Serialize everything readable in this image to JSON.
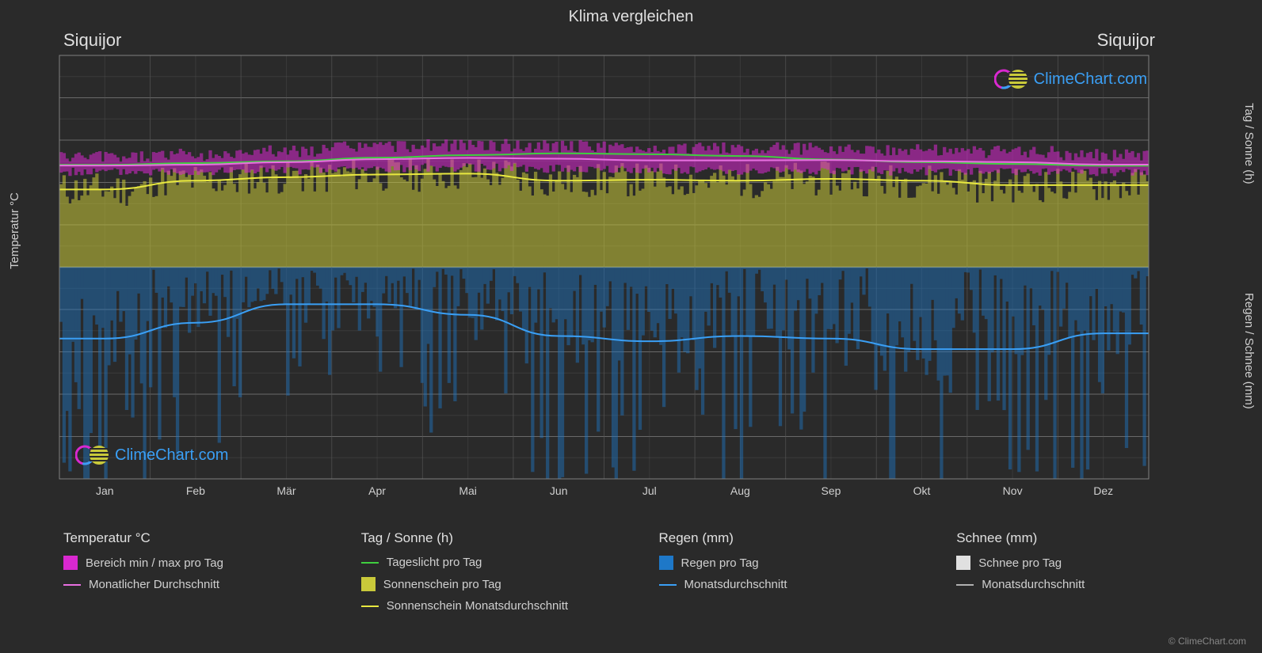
{
  "title": "Klima vergleichen",
  "location_left": "Siquijor",
  "location_right": "Siquijor",
  "watermark_text": "ClimeChart.com",
  "credit": "© ClimeChart.com",
  "axis_left": {
    "label": "Temperatur °C",
    "min": -50,
    "max": 50,
    "ticks": [
      -50,
      -40,
      -30,
      -20,
      -10,
      0,
      10,
      20,
      30,
      40,
      50
    ],
    "fontsize": 14,
    "color": "#d0d0d0"
  },
  "axis_right_top": {
    "label": "Tag / Sonne (h)",
    "min": 0,
    "max": 24,
    "ticks": [
      0,
      6,
      12,
      18,
      24
    ],
    "fontsize": 14,
    "color": "#d0d0d0"
  },
  "axis_right_bottom": {
    "label": "Regen / Schnee (mm)",
    "min": 0,
    "max": 40,
    "ticks": [
      0,
      10,
      20,
      30,
      40
    ],
    "fontsize": 14,
    "color": "#d0d0d0"
  },
  "months": [
    "Jan",
    "Feb",
    "Mär",
    "Apr",
    "Mai",
    "Jun",
    "Jul",
    "Aug",
    "Sep",
    "Okt",
    "Nov",
    "Dez"
  ],
  "chart": {
    "background_color": "#2a2a2a",
    "grid_color": "#555555",
    "grid_major_color": "#707070",
    "zero_line_color": "#909090",
    "temp_range_color": "#d928d0",
    "temp_range_opacity": 0.55,
    "temp_avg_line_color": "#e86fe0",
    "temp_avg_line_width": 2,
    "daylight_line_color": "#3fcf3f",
    "daylight_line_width": 2,
    "sunshine_bar_color": "#c9c93a",
    "sunshine_bar_opacity": 0.55,
    "sunshine_avg_line_color": "#e8e840",
    "sunshine_avg_line_width": 2,
    "rain_bar_color": "#1e78c8",
    "rain_bar_opacity": 0.45,
    "rain_avg_line_color": "#3a9ff5",
    "rain_avg_line_width": 2,
    "snow_bar_color": "#e0e0e0",
    "snow_avg_line_color": "#b0b0b0"
  },
  "series": {
    "temp_min_monthly": [
      22.5,
      22.6,
      22.8,
      23.2,
      23.5,
      23.2,
      22.9,
      22.8,
      22.7,
      22.6,
      22.6,
      22.5
    ],
    "temp_max_monthly": [
      26.0,
      26.5,
      27.5,
      28.5,
      28.8,
      28.5,
      28.0,
      28.0,
      28.0,
      27.8,
      27.2,
      26.5
    ],
    "temp_avg_monthly": [
      24.0,
      24.2,
      24.8,
      25.5,
      25.8,
      25.6,
      25.2,
      25.2,
      25.3,
      25.0,
      24.8,
      24.2
    ],
    "daylight_monthly": [
      11.6,
      11.8,
      12.0,
      12.4,
      12.7,
      12.9,
      12.8,
      12.6,
      12.2,
      11.9,
      11.7,
      11.5
    ],
    "sunshine_avg_monthly": [
      8.8,
      9.8,
      10.2,
      10.5,
      10.6,
      9.8,
      9.9,
      9.8,
      10.0,
      9.8,
      9.3,
      9.3
    ],
    "rain_avg_monthly": [
      13.5,
      10.5,
      7.0,
      7.0,
      9.0,
      13.0,
      14.0,
      13.0,
      13.5,
      15.5,
      15.5,
      12.5
    ]
  },
  "legend": {
    "col1": {
      "title": "Temperatur °C",
      "items": [
        {
          "type": "box",
          "color": "#d928d0",
          "label": "Bereich min / max pro Tag"
        },
        {
          "type": "line",
          "color": "#e86fe0",
          "label": "Monatlicher Durchschnitt"
        }
      ]
    },
    "col2": {
      "title": "Tag / Sonne (h)",
      "items": [
        {
          "type": "line",
          "color": "#3fcf3f",
          "label": "Tageslicht pro Tag"
        },
        {
          "type": "box",
          "color": "#c9c93a",
          "label": "Sonnenschein pro Tag"
        },
        {
          "type": "line",
          "color": "#e8e840",
          "label": "Sonnenschein Monatsdurchschnitt"
        }
      ]
    },
    "col3": {
      "title": "Regen (mm)",
      "items": [
        {
          "type": "box",
          "color": "#1e78c8",
          "label": "Regen pro Tag"
        },
        {
          "type": "line",
          "color": "#3a9ff5",
          "label": "Monatsdurchschnitt"
        }
      ]
    },
    "col4": {
      "title": "Schnee (mm)",
      "items": [
        {
          "type": "box",
          "color": "#e0e0e0",
          "label": "Schnee pro Tag"
        },
        {
          "type": "line",
          "color": "#b0b0b0",
          "label": "Monatsdurchschnitt"
        }
      ]
    }
  }
}
